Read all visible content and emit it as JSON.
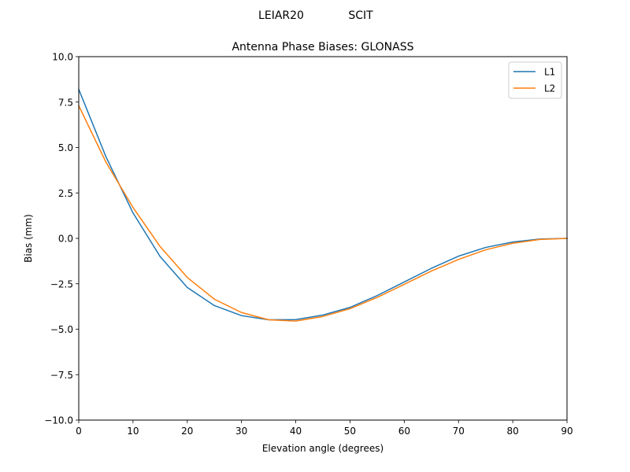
{
  "figure": {
    "suptitle_left": "LEIAR20",
    "suptitle_right": "SCIT"
  },
  "chart_data": {
    "type": "line",
    "title": "Antenna Phase Biases: GLONASS",
    "xlabel": "Elevation angle (degrees)",
    "ylabel": "Bias (mm)",
    "xlim": [
      0,
      90
    ],
    "ylim": [
      -10,
      10
    ],
    "xticks": [
      0,
      10,
      20,
      30,
      40,
      50,
      60,
      70,
      80,
      90
    ],
    "xtick_labels": [
      "0",
      "10",
      "20",
      "30",
      "40",
      "50",
      "60",
      "70",
      "80",
      "90"
    ],
    "yticks": [
      10,
      7.5,
      5,
      2.5,
      0,
      -2.5,
      -5,
      -7.5,
      -10
    ],
    "ytick_labels": [
      "10.0",
      "7.5",
      "5.0",
      "2.5",
      "0.0",
      "−2.5",
      "−5.0",
      "−7.5",
      "−10.0"
    ],
    "grid": false,
    "legend_position": "top-right",
    "x": [
      0,
      5,
      10,
      15,
      20,
      25,
      30,
      35,
      40,
      45,
      50,
      55,
      60,
      65,
      70,
      75,
      80,
      85,
      90
    ],
    "series": [
      {
        "name": "L1",
        "color": "#1f77b4",
        "values": [
          8.2,
          4.5,
          1.4,
          -1.0,
          -2.7,
          -3.7,
          -4.25,
          -4.48,
          -4.47,
          -4.22,
          -3.8,
          -3.15,
          -2.4,
          -1.65,
          -0.98,
          -0.5,
          -0.2,
          -0.04,
          0.0
        ]
      },
      {
        "name": "L2",
        "color": "#ff7f0e",
        "values": [
          7.3,
          4.2,
          1.7,
          -0.45,
          -2.15,
          -3.35,
          -4.08,
          -4.48,
          -4.55,
          -4.3,
          -3.87,
          -3.25,
          -2.53,
          -1.8,
          -1.16,
          -0.63,
          -0.27,
          -0.06,
          0.0
        ]
      }
    ]
  }
}
